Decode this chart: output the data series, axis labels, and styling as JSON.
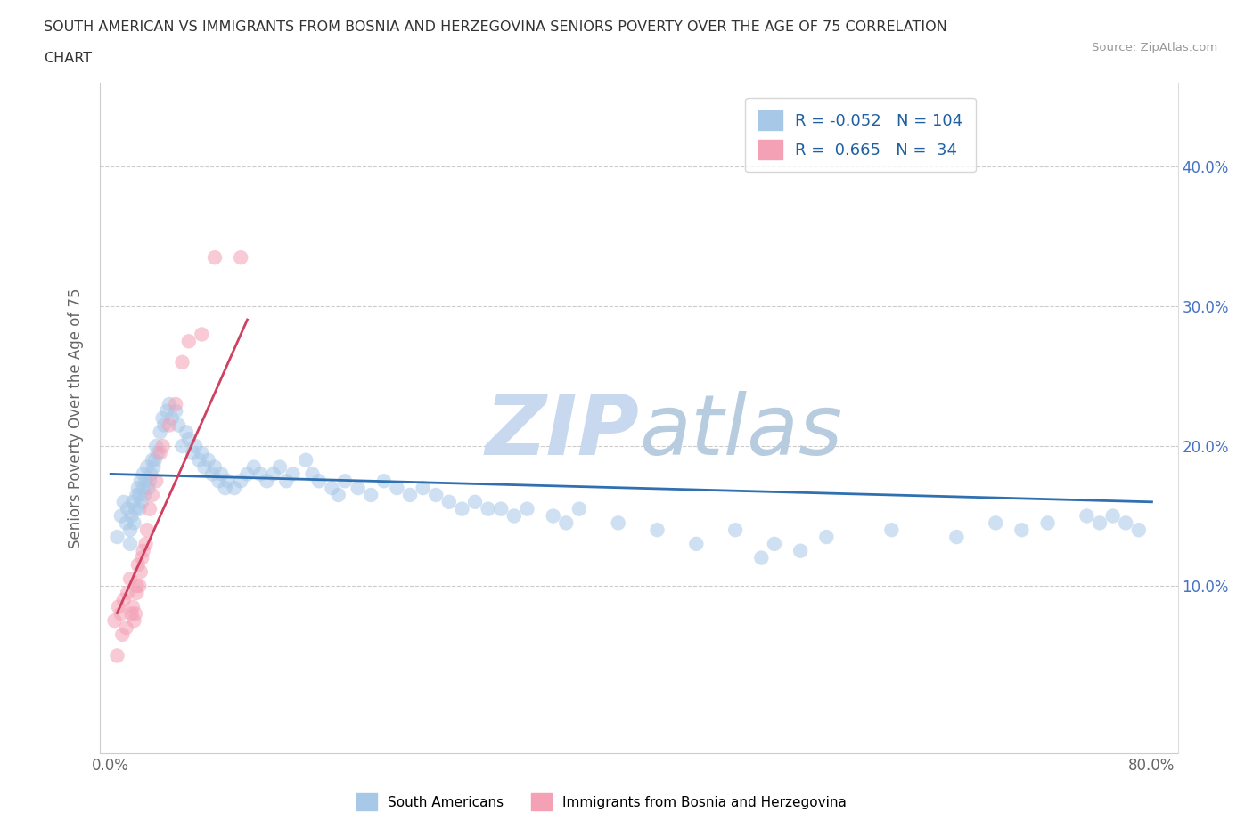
{
  "title_line1": "SOUTH AMERICAN VS IMMIGRANTS FROM BOSNIA AND HERZEGOVINA SENIORS POVERTY OVER THE AGE OF 75 CORRELATION",
  "title_line2": "CHART",
  "source": "Source: ZipAtlas.com",
  "ylabel": "Seniors Poverty Over the Age of 75",
  "blue_color": "#a8c8e8",
  "pink_color": "#f4a0b5",
  "blue_line_color": "#3070b0",
  "pink_line_color": "#d04060",
  "legend_R1": "-0.052",
  "legend_N1": "104",
  "legend_R2": "0.665",
  "legend_N2": "34",
  "watermark_color": "#c8d8ee",
  "blue_scatter_x": [
    0.005,
    0.008,
    0.01,
    0.012,
    0.013,
    0.015,
    0.015,
    0.016,
    0.017,
    0.018,
    0.019,
    0.02,
    0.021,
    0.022,
    0.022,
    0.023,
    0.024,
    0.025,
    0.025,
    0.026,
    0.027,
    0.028,
    0.029,
    0.03,
    0.031,
    0.032,
    0.033,
    0.034,
    0.035,
    0.036,
    0.038,
    0.04,
    0.041,
    0.043,
    0.045,
    0.047,
    0.05,
    0.052,
    0.055,
    0.058,
    0.06,
    0.063,
    0.065,
    0.068,
    0.07,
    0.072,
    0.075,
    0.078,
    0.08,
    0.083,
    0.085,
    0.088,
    0.09,
    0.095,
    0.1,
    0.105,
    0.11,
    0.115,
    0.12,
    0.125,
    0.13,
    0.135,
    0.14,
    0.15,
    0.155,
    0.16,
    0.17,
    0.175,
    0.18,
    0.19,
    0.2,
    0.21,
    0.22,
    0.23,
    0.24,
    0.25,
    0.26,
    0.27,
    0.28,
    0.29,
    0.3,
    0.31,
    0.32,
    0.34,
    0.35,
    0.36,
    0.39,
    0.42,
    0.45,
    0.48,
    0.5,
    0.51,
    0.53,
    0.55,
    0.6,
    0.65,
    0.68,
    0.7,
    0.72,
    0.75,
    0.76,
    0.77,
    0.78,
    0.79
  ],
  "blue_scatter_y": [
    0.135,
    0.15,
    0.16,
    0.145,
    0.155,
    0.13,
    0.14,
    0.15,
    0.16,
    0.145,
    0.155,
    0.165,
    0.17,
    0.155,
    0.165,
    0.175,
    0.16,
    0.17,
    0.18,
    0.165,
    0.175,
    0.185,
    0.17,
    0.175,
    0.18,
    0.19,
    0.185,
    0.19,
    0.2,
    0.195,
    0.21,
    0.22,
    0.215,
    0.225,
    0.23,
    0.22,
    0.225,
    0.215,
    0.2,
    0.21,
    0.205,
    0.195,
    0.2,
    0.19,
    0.195,
    0.185,
    0.19,
    0.18,
    0.185,
    0.175,
    0.18,
    0.17,
    0.175,
    0.17,
    0.175,
    0.18,
    0.185,
    0.18,
    0.175,
    0.18,
    0.185,
    0.175,
    0.18,
    0.19,
    0.18,
    0.175,
    0.17,
    0.165,
    0.175,
    0.17,
    0.165,
    0.175,
    0.17,
    0.165,
    0.17,
    0.165,
    0.16,
    0.155,
    0.16,
    0.155,
    0.155,
    0.15,
    0.155,
    0.15,
    0.145,
    0.155,
    0.145,
    0.14,
    0.13,
    0.14,
    0.12,
    0.13,
    0.125,
    0.135,
    0.14,
    0.135,
    0.145,
    0.14,
    0.145,
    0.15,
    0.145,
    0.15,
    0.145,
    0.14
  ],
  "pink_scatter_x": [
    0.003,
    0.005,
    0.006,
    0.008,
    0.009,
    0.01,
    0.012,
    0.013,
    0.015,
    0.016,
    0.017,
    0.018,
    0.019,
    0.02,
    0.02,
    0.021,
    0.022,
    0.023,
    0.024,
    0.025,
    0.027,
    0.028,
    0.03,
    0.032,
    0.035,
    0.038,
    0.04,
    0.045,
    0.05,
    0.055,
    0.06,
    0.07,
    0.08,
    0.1
  ],
  "pink_scatter_y": [
    0.075,
    0.05,
    0.085,
    0.08,
    0.065,
    0.09,
    0.07,
    0.095,
    0.105,
    0.08,
    0.085,
    0.075,
    0.08,
    0.095,
    0.1,
    0.115,
    0.1,
    0.11,
    0.12,
    0.125,
    0.13,
    0.14,
    0.155,
    0.165,
    0.175,
    0.195,
    0.2,
    0.215,
    0.23,
    0.26,
    0.275,
    0.28,
    0.335,
    0.335
  ]
}
